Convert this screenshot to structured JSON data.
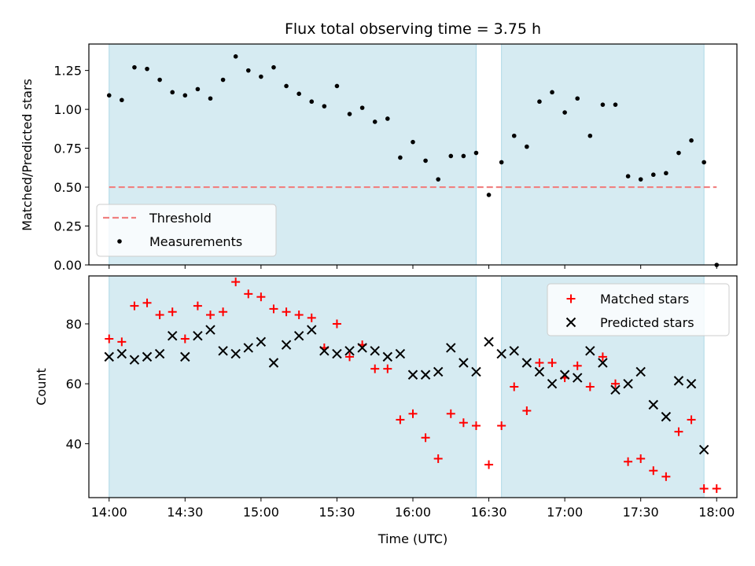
{
  "chart_data": [
    {
      "type": "scatter",
      "title": "Flux total observing time = 3.75 h",
      "ylabel": "Matched/Predicted stars",
      "xlabel": "",
      "xlim": [
        "13:52",
        "18:08"
      ],
      "ylim": [
        0,
        1.42
      ],
      "yticks": [
        "0.00",
        "0.25",
        "0.50",
        "0.75",
        "1.00",
        "1.25"
      ],
      "yticks_values": [
        0,
        0.25,
        0.5,
        0.75,
        1.0,
        1.25
      ],
      "grid": false,
      "legend_position": "lower-left",
      "shaded_intervals": [
        [
          "14:00",
          "16:25"
        ],
        [
          "16:35",
          "17:55"
        ]
      ],
      "threshold": {
        "name": "Threshold",
        "value": 0.5,
        "x_range": [
          "14:00",
          "18:00"
        ],
        "color": "#f08080"
      },
      "series": [
        {
          "name": "Measurements",
          "color": "#000000",
          "x": [
            "14:00",
            "14:05",
            "14:10",
            "14:15",
            "14:20",
            "14:25",
            "14:30",
            "14:35",
            "14:40",
            "14:45",
            "14:50",
            "14:55",
            "15:00",
            "15:05",
            "15:10",
            "15:15",
            "15:20",
            "15:25",
            "15:30",
            "15:35",
            "15:40",
            "15:45",
            "15:50",
            "15:55",
            "16:00",
            "16:05",
            "16:10",
            "16:15",
            "16:20",
            "16:25",
            "16:30",
            "16:35",
            "16:40",
            "16:45",
            "16:50",
            "16:55",
            "17:00",
            "17:05",
            "17:10",
            "17:15",
            "17:20",
            "17:25",
            "17:30",
            "17:35",
            "17:40",
            "17:45",
            "17:50",
            "17:55",
            "18:00"
          ],
          "y": [
            1.09,
            1.06,
            1.27,
            1.26,
            1.19,
            1.11,
            1.09,
            1.13,
            1.07,
            1.19,
            1.34,
            1.25,
            1.21,
            1.27,
            1.15,
            1.1,
            1.05,
            1.02,
            1.15,
            0.97,
            1.01,
            0.92,
            0.94,
            0.69,
            0.79,
            0.67,
            0.55,
            0.7,
            0.7,
            0.72,
            0.45,
            0.66,
            0.83,
            0.76,
            1.05,
            1.11,
            0.98,
            1.07,
            0.83,
            1.03,
            1.03,
            0.57,
            0.55,
            0.58,
            0.59,
            0.72,
            0.8,
            0.66,
            0.0
          ]
        }
      ]
    },
    {
      "type": "scatter",
      "title": "",
      "ylabel": "Count",
      "xlabel": "Time (UTC)",
      "xlim": [
        "13:52",
        "18:08"
      ],
      "ylim": [
        22,
        96
      ],
      "yticks": [
        "40",
        "60",
        "80"
      ],
      "yticks_values": [
        40,
        60,
        80
      ],
      "xticks": [
        "14:00",
        "14:30",
        "15:00",
        "15:30",
        "16:00",
        "16:30",
        "17:00",
        "17:30",
        "18:00"
      ],
      "grid": false,
      "legend_position": "upper-right",
      "shaded_intervals": [
        [
          "14:00",
          "16:25"
        ],
        [
          "16:35",
          "17:55"
        ]
      ],
      "series": [
        {
          "name": "Matched stars",
          "marker": "plus",
          "color": "#ff0000",
          "x": [
            "14:00",
            "14:05",
            "14:10",
            "14:15",
            "14:20",
            "14:25",
            "14:30",
            "14:35",
            "14:40",
            "14:45",
            "14:50",
            "14:55",
            "15:00",
            "15:05",
            "15:10",
            "15:15",
            "15:20",
            "15:25",
            "15:30",
            "15:35",
            "15:40",
            "15:45",
            "15:50",
            "15:55",
            "16:00",
            "16:05",
            "16:10",
            "16:15",
            "16:20",
            "16:25",
            "16:30",
            "16:35",
            "16:40",
            "16:45",
            "16:50",
            "16:55",
            "17:00",
            "17:05",
            "17:10",
            "17:15",
            "17:20",
            "17:25",
            "17:30",
            "17:35",
            "17:40",
            "17:45",
            "17:50",
            "17:55",
            "18:00"
          ],
          "y": [
            75,
            74,
            86,
            87,
            83,
            84,
            75,
            86,
            83,
            84,
            94,
            90,
            89,
            85,
            84,
            83,
            82,
            72,
            80,
            69,
            73,
            65,
            65,
            48,
            50,
            42,
            35,
            50,
            47,
            46,
            33,
            46,
            59,
            51,
            67,
            67,
            62,
            66,
            59,
            69,
            60,
            34,
            35,
            31,
            29,
            44,
            48,
            25,
            25
          ]
        },
        {
          "name": "Predicted stars",
          "marker": "x",
          "color": "#000000",
          "x": [
            "14:00",
            "14:05",
            "14:10",
            "14:15",
            "14:20",
            "14:25",
            "14:30",
            "14:35",
            "14:40",
            "14:45",
            "14:50",
            "14:55",
            "15:00",
            "15:05",
            "15:10",
            "15:15",
            "15:20",
            "15:25",
            "15:30",
            "15:35",
            "15:40",
            "15:45",
            "15:50",
            "15:55",
            "16:00",
            "16:05",
            "16:10",
            "16:15",
            "16:20",
            "16:25",
            "16:30",
            "16:35",
            "16:40",
            "16:45",
            "16:50",
            "16:55",
            "17:00",
            "17:05",
            "17:10",
            "17:15",
            "17:20",
            "17:25",
            "17:30",
            "17:35",
            "17:40",
            "17:45",
            "17:50",
            "17:55"
          ],
          "y": [
            69,
            70,
            68,
            69,
            70,
            76,
            69,
            76,
            78,
            71,
            70,
            72,
            74,
            67,
            73,
            76,
            78,
            71,
            70,
            71,
            72,
            71,
            69,
            70,
            63,
            63,
            64,
            72,
            67,
            64,
            74,
            70,
            71,
            67,
            64,
            60,
            63,
            62,
            71,
            67,
            58,
            60,
            64,
            53,
            49,
            61,
            60,
            38
          ]
        }
      ]
    }
  ]
}
